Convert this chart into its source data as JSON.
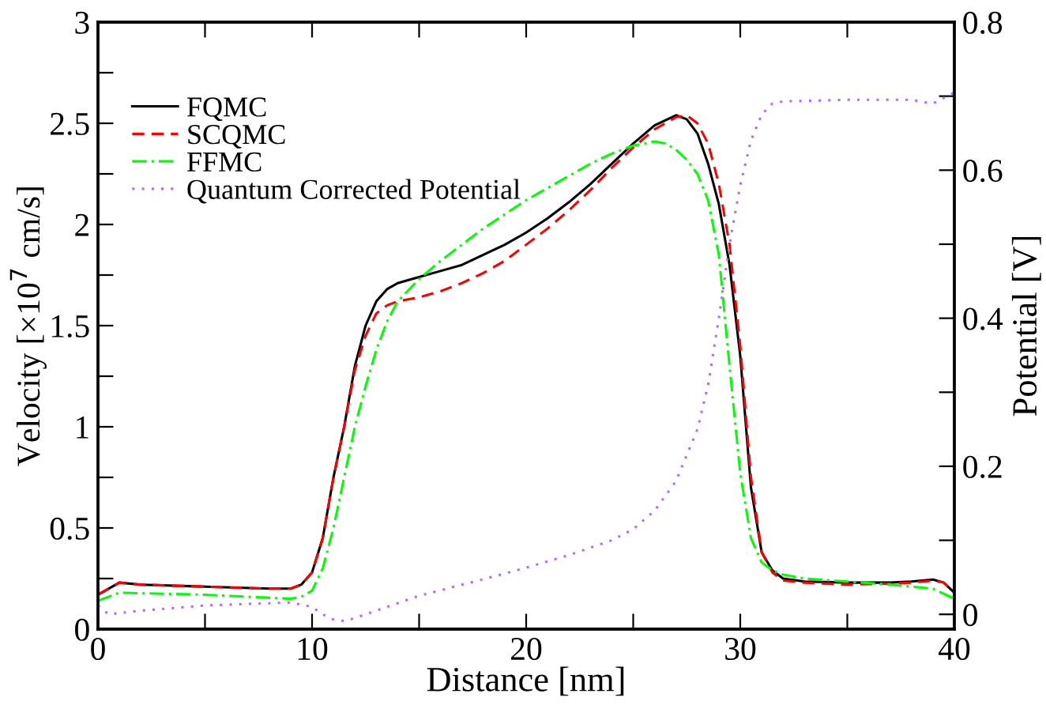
{
  "chart_data": {
    "type": "line",
    "xlabel": "Distance [nm]",
    "ylabel": "Velocity [×10$^{7}$ cm/s]",
    "y2label": "Potential [V]",
    "xlim": [
      0,
      40
    ],
    "xticks": [
      0,
      {
        "value": 5,
        "label": null
      },
      10,
      {
        "value": 15,
        "label": null
      },
      20,
      {
        "value": 25,
        "label": null
      },
      30,
      {
        "value": 35,
        "label": null
      },
      40
    ],
    "ylim": [
      0,
      3
    ],
    "yticks": [
      0,
      {
        "value": 0.25,
        "label": null
      },
      0.5,
      {
        "value": 0.75,
        "label": null
      },
      1,
      {
        "value": 1.25,
        "label": null
      },
      1.5,
      {
        "value": 1.75,
        "label": null
      },
      2,
      {
        "value": 2.25,
        "label": null
      },
      2.5,
      {
        "value": 2.75,
        "label": null
      },
      3
    ],
    "y2lim": [
      -0.02,
      0.8
    ],
    "y2ticks": [
      0,
      {
        "value": 0.1,
        "label": null
      },
      0.2,
      {
        "value": 0.3,
        "label": null
      },
      0.4,
      {
        "value": 0.5,
        "label": null
      },
      0.6,
      {
        "value": 0.7,
        "label": null
      },
      0.8
    ],
    "grid": false,
    "legend": "top left",
    "marker": "none",
    "series": [
      {
        "name": "FQMC",
        "color": "#000000",
        "line_style": "solid",
        "x": [
          0,
          1,
          2,
          5,
          8,
          9,
          9.5,
          10,
          10.5,
          11,
          11.5,
          12,
          12.5,
          13,
          13.5,
          14,
          15,
          16,
          17,
          18,
          19,
          20,
          21,
          22,
          23,
          24,
          25,
          26,
          27,
          27.5,
          28,
          28.5,
          29,
          29.5,
          30,
          30.5,
          31,
          31.5,
          32,
          33,
          35,
          37,
          38,
          39,
          39.5,
          40
        ],
        "values": [
          0.17,
          0.23,
          0.22,
          0.21,
          0.2,
          0.2,
          0.22,
          0.28,
          0.45,
          0.75,
          1.0,
          1.3,
          1.5,
          1.62,
          1.68,
          1.71,
          1.74,
          1.77,
          1.8,
          1.85,
          1.9,
          1.96,
          2.03,
          2.11,
          2.2,
          2.3,
          2.4,
          2.49,
          2.54,
          2.52,
          2.45,
          2.3,
          2.1,
          1.8,
          1.35,
          0.7,
          0.38,
          0.29,
          0.25,
          0.235,
          0.23,
          0.23,
          0.235,
          0.245,
          0.23,
          0.18
        ]
      },
      {
        "name": "SCQMC",
        "color": "#ff0000",
        "line_style": "dashed",
        "x": [
          0,
          1,
          2,
          5,
          8,
          9,
          9.5,
          10,
          10.5,
          11,
          11.5,
          12,
          12.5,
          13,
          13.5,
          14,
          15,
          16,
          17,
          18,
          19,
          20,
          21,
          22,
          23,
          24,
          25,
          26,
          27,
          27.5,
          28,
          28.5,
          29,
          29.5,
          30,
          30.5,
          31,
          31.5,
          32,
          33,
          35,
          37,
          38,
          39,
          39.5,
          40
        ],
        "values": [
          0.17,
          0.23,
          0.22,
          0.21,
          0.2,
          0.2,
          0.22,
          0.28,
          0.45,
          0.75,
          1.0,
          1.28,
          1.45,
          1.56,
          1.6,
          1.62,
          1.64,
          1.67,
          1.71,
          1.76,
          1.82,
          1.9,
          1.98,
          2.07,
          2.17,
          2.28,
          2.38,
          2.47,
          2.53,
          2.54,
          2.5,
          2.4,
          2.2,
          1.9,
          1.4,
          0.75,
          0.38,
          0.28,
          0.24,
          0.23,
          0.22,
          0.225,
          0.23,
          0.24,
          0.23,
          0.18
        ]
      },
      {
        "name": "FFMC",
        "color": "#00ff00",
        "line_style": "dashdot",
        "x": [
          0,
          1,
          3,
          5,
          7,
          9,
          9.5,
          10,
          10.5,
          11,
          11.5,
          12,
          12.5,
          13,
          13.5,
          14,
          15,
          16,
          17,
          18,
          19,
          20,
          21,
          22,
          23,
          24,
          25,
          26,
          26.5,
          27,
          27.5,
          28,
          28.5,
          29,
          29.5,
          30,
          30.5,
          31,
          31.5,
          32,
          33,
          35,
          37,
          39,
          40
        ],
        "values": [
          0.14,
          0.18,
          0.175,
          0.17,
          0.16,
          0.15,
          0.16,
          0.19,
          0.3,
          0.5,
          0.75,
          1.0,
          1.2,
          1.38,
          1.52,
          1.62,
          1.73,
          1.82,
          1.9,
          1.98,
          2.05,
          2.12,
          2.18,
          2.24,
          2.3,
          2.35,
          2.39,
          2.41,
          2.4,
          2.37,
          2.32,
          2.25,
          2.12,
          1.85,
          1.3,
          0.77,
          0.45,
          0.33,
          0.29,
          0.27,
          0.25,
          0.235,
          0.22,
          0.2,
          0.15
        ]
      },
      {
        "name": "Quantum Corrected Potential",
        "color": "#b469ff",
        "line_style": "dotted",
        "axis": "y2",
        "x": [
          0,
          0.5,
          2,
          5,
          8,
          9,
          10,
          10.5,
          11,
          11.5,
          12,
          13,
          15,
          17,
          19,
          20,
          22,
          24,
          25,
          26,
          27,
          28,
          28.5,
          29,
          29.5,
          30,
          30.5,
          31,
          31.5,
          32,
          35,
          38,
          39,
          40
        ],
        "values": [
          0.012,
          0.0,
          0.005,
          0.012,
          0.015,
          0.016,
          0.01,
          0.0,
          -0.007,
          -0.009,
          -0.005,
          0.005,
          0.025,
          0.04,
          0.055,
          0.063,
          0.08,
          0.1,
          0.115,
          0.14,
          0.18,
          0.25,
          0.31,
          0.4,
          0.5,
          0.58,
          0.64,
          0.675,
          0.69,
          0.693,
          0.695,
          0.695,
          0.69,
          0.705
        ]
      }
    ]
  }
}
